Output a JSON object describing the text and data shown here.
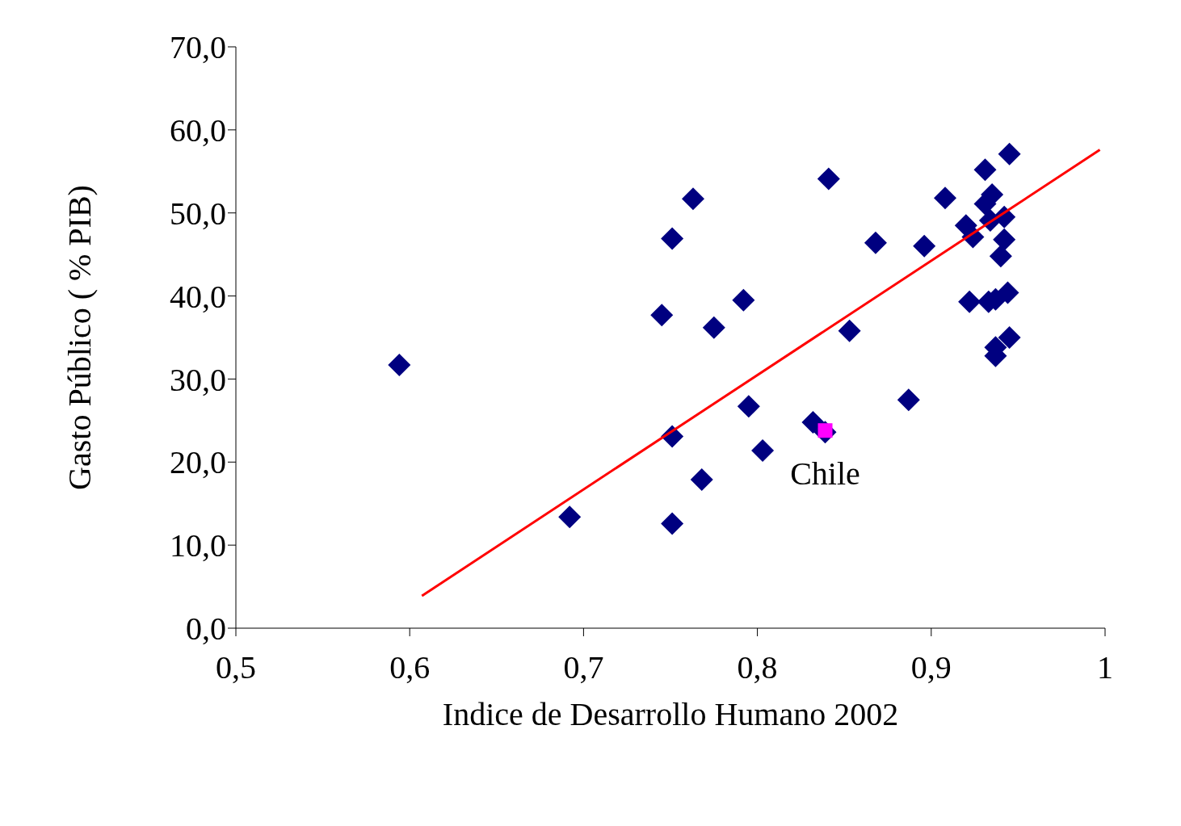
{
  "chart_data": {
    "type": "scatter",
    "xlabel": "Indice de Desarrollo Humano 2002",
    "ylabel": "Gasto Público ( % PIB)",
    "xlim": [
      0.5,
      1
    ],
    "ylim": [
      0,
      70
    ],
    "xticks": [
      {
        "value": 0.5,
        "label": "0,5"
      },
      {
        "value": 0.6,
        "label": "0,6"
      },
      {
        "value": 0.7,
        "label": "0,7"
      },
      {
        "value": 0.8,
        "label": "0,8"
      },
      {
        "value": 0.9,
        "label": "0,9"
      },
      1
    ],
    "yticks": [
      {
        "value": 0,
        "label": "0,0"
      },
      {
        "value": 10,
        "label": "10,0"
      },
      {
        "value": 20,
        "label": "20,0"
      },
      {
        "value": 30,
        "label": "30,0"
      },
      {
        "value": 40,
        "label": "40,0"
      },
      {
        "value": 50,
        "label": "50,0"
      },
      {
        "value": 60,
        "label": "60,0"
      },
      {
        "value": 70,
        "label": "70,0"
      }
    ],
    "grid": false,
    "legend": false,
    "series": [
      {
        "type": "scatter",
        "marker": "diamond",
        "color": "#000080",
        "x": [
          0.594,
          0.692,
          0.745,
          0.751,
          0.751,
          0.751,
          0.763,
          0.768,
          0.775,
          0.792,
          0.795,
          0.803,
          0.832,
          0.839,
          0.841,
          0.853,
          0.868,
          0.887,
          0.896,
          0.908,
          0.931,
          0.945,
          0.935,
          0.931,
          0.934,
          0.942,
          0.92,
          0.924,
          0.942,
          0.94,
          0.922,
          0.933,
          0.937,
          0.944,
          0.945,
          0.937,
          0.937
        ],
        "values": [
          31.7,
          13.4,
          37.7,
          46.9,
          23.1,
          12.6,
          51.7,
          17.9,
          36.2,
          39.5,
          26.7,
          21.4,
          24.8,
          23.6,
          54.1,
          35.8,
          46.4,
          27.5,
          46.0,
          51.8,
          55.2,
          57.1,
          52.2,
          51.1,
          49.1,
          49.5,
          48.5,
          47.1,
          46.8,
          44.8,
          39.3,
          39.3,
          39.6,
          40.4,
          35.0,
          33.8,
          32.8
        ]
      },
      {
        "type": "scatter",
        "marker": "square",
        "color": "#ff00ff",
        "x": [
          0.839
        ],
        "values": [
          23.8
        ]
      },
      {
        "type": "line",
        "marker": "none",
        "line_style": "solid",
        "color": "#ff0000",
        "x": [
          0.607,
          0.997
        ],
        "values": [
          3.9,
          57.6
        ]
      }
    ],
    "annotations": [
      {
        "text": "Chile",
        "x": 0.839,
        "y": 23.8
      }
    ]
  }
}
